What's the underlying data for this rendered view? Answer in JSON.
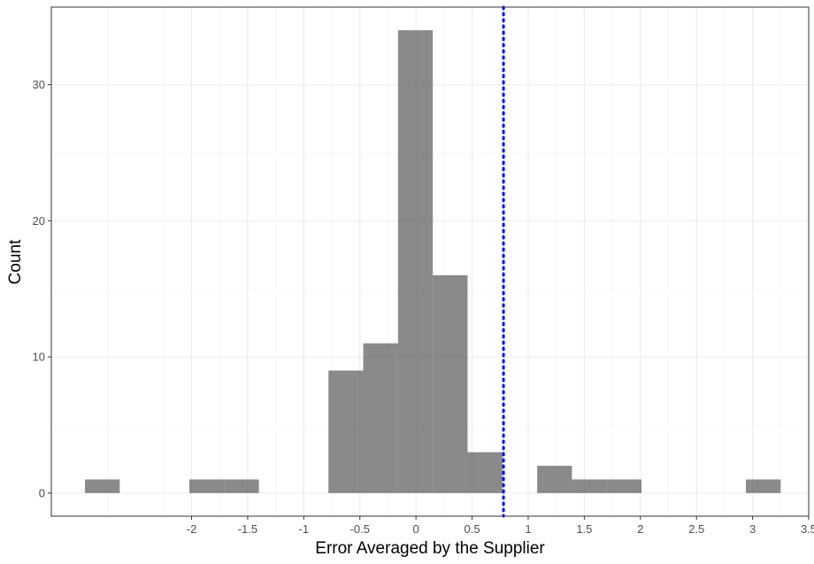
{
  "chart_data": {
    "type": "bar",
    "subtype": "histogram",
    "xlabel": "Error Averaged by the Supplier",
    "ylabel": "Count",
    "xlim": [
      -3.25,
      3.5
    ],
    "ylim": [
      -1.7,
      35.7
    ],
    "x_ticks": [
      -2,
      -1.5,
      -1,
      -0.5,
      0,
      0.5,
      1,
      1.5,
      2,
      2.5,
      3,
      3.5
    ],
    "x_tick_labels": [
      "-2",
      "-1.5",
      "-1",
      "-0.5",
      "0",
      "0.5",
      "1",
      "1.5",
      "2",
      "2.5",
      "3",
      "3.5"
    ],
    "y_ticks": [
      0,
      10,
      20,
      30
    ],
    "y_tick_labels": [
      "0",
      "10",
      "20",
      "30"
    ],
    "bins": [
      {
        "x0": -2.95,
        "x1": -2.64,
        "count": 1
      },
      {
        "x0": -2.02,
        "x1": -1.71,
        "count": 1
      },
      {
        "x0": -1.71,
        "x1": -1.4,
        "count": 1
      },
      {
        "x0": -0.78,
        "x1": -0.47,
        "count": 9
      },
      {
        "x0": -0.47,
        "x1": -0.16,
        "count": 11
      },
      {
        "x0": -0.16,
        "x1": 0.15,
        "count": 34
      },
      {
        "x0": 0.15,
        "x1": 0.46,
        "count": 16
      },
      {
        "x0": 0.46,
        "x1": 0.77,
        "count": 3
      },
      {
        "x0": 1.08,
        "x1": 1.39,
        "count": 2
      },
      {
        "x0": 1.39,
        "x1": 1.7,
        "count": 1
      },
      {
        "x0": 1.7,
        "x1": 2.01,
        "count": 1
      },
      {
        "x0": 2.94,
        "x1": 3.25,
        "count": 1
      }
    ],
    "reference_line": {
      "x": 0.78,
      "style": "dotted",
      "color": "#0000ff"
    },
    "bar_color": "#595959",
    "grid": true,
    "legend": "none"
  }
}
